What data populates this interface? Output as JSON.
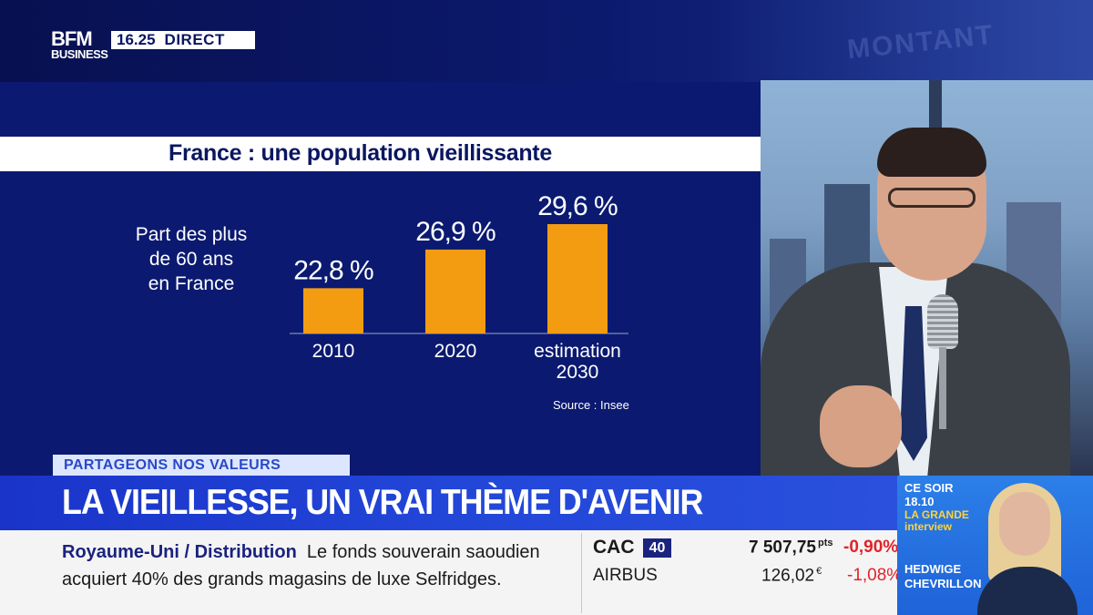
{
  "header": {
    "logo_line1": "BFM",
    "logo_line2": "BUSINESS",
    "time": "16.25",
    "live": "DIRECT",
    "background_text": "MONTANT"
  },
  "chart_data": {
    "type": "bar",
    "title": "France : une population vieillissante",
    "ylabel_lines": [
      "Part des plus",
      "de 60 ans",
      "en France"
    ],
    "categories": [
      [
        "2010"
      ],
      [
        "2020"
      ],
      [
        "estimation",
        "2030"
      ]
    ],
    "values": [
      22.8,
      26.9,
      29.6
    ],
    "value_labels": [
      "22,8 %",
      "26,9 %",
      "29,6 %"
    ],
    "bar_color": "#f39c12",
    "source": "Source : Insee"
  },
  "lower_third": {
    "tag": "PARTAGEONS NOS VALEURS",
    "headline": "LA VIEILLESSE, UN VRAI THÈME D'AVENIR"
  },
  "ticker": {
    "category": "Royaume-Uni / Distribution",
    "text_line1": "Le fonds souverain saoudien",
    "text_line2": "acquiert 40% des grands magasins de luxe Selfridges."
  },
  "markets": [
    {
      "name": "CAC",
      "badge": "40",
      "value": "7 507,75",
      "unit": "pts",
      "change": "-0,90%"
    },
    {
      "name": "AIRBUS",
      "badge": "",
      "value": "126,02",
      "unit": "€",
      "change": "-1,08%"
    }
  ],
  "promo": {
    "line1": "CE SOIR",
    "line2": "18.10",
    "line3": "LA GRANDE",
    "line4": "interview",
    "name1": "HEDWIGE",
    "name2": "CHEVRILLON"
  }
}
